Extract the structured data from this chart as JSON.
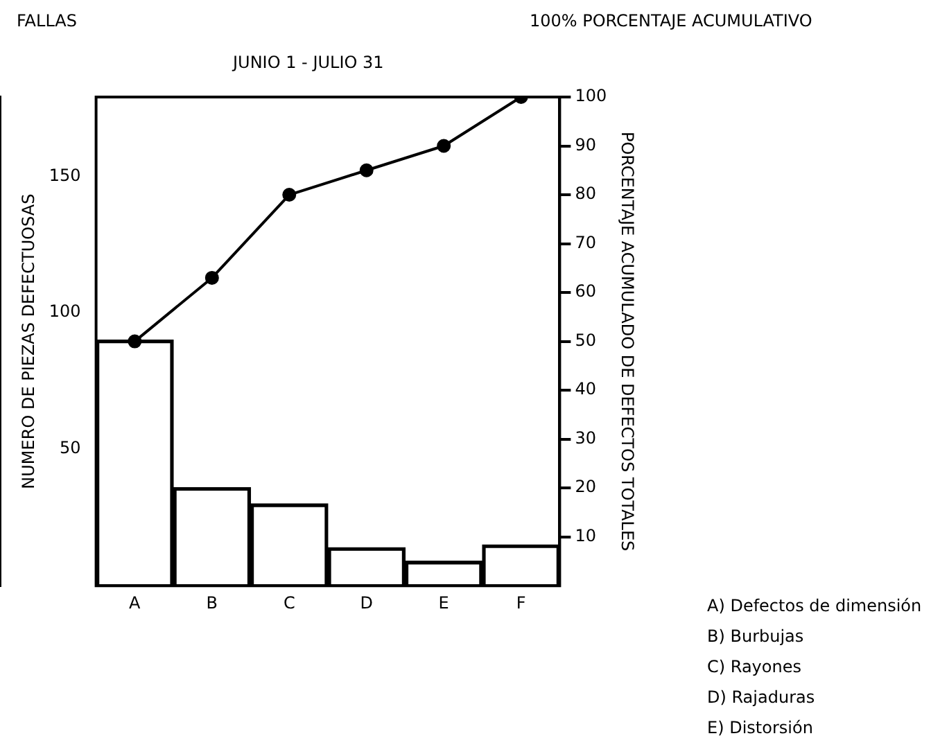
{
  "chart_data": {
    "type": "bar",
    "subtitle": "JUNIO 1 - JULIO 31",
    "ylabel": "NUMERO DE PIEZAS DEFECTUOSAS",
    "y2label": "PORCENTAJE ACUMULADO DE DEFECTOS TOTALES",
    "categories": [
      "A",
      "B",
      "C",
      "D",
      "E",
      "F"
    ],
    "series": [
      {
        "color": "#000000",
        "values": [
          90,
          36,
          30,
          14,
          9,
          15
        ]
      },
      {
        "type": "line",
        "axis": "y2",
        "color": "#000000",
        "marker": "circle",
        "values": [
          50,
          63,
          80,
          85,
          90,
          100
        ]
      }
    ],
    "ylim": [
      0,
      179
    ],
    "yticks": [
      50,
      100,
      150
    ],
    "y2lim": [
      0,
      100
    ],
    "y2ticks": [
      10,
      20,
      30,
      40,
      50,
      60,
      70,
      80,
      90,
      100
    ],
    "grid": false,
    "legend": false,
    "annotations": [
      "FALLAS",
      "100% PORCENTAJE ACUMULATIVO",
      "A) Defectos de dimensión",
      "B) Burbujas",
      "C) Rayones",
      "D) Rajaduras",
      "E) Distorsión"
    ]
  }
}
